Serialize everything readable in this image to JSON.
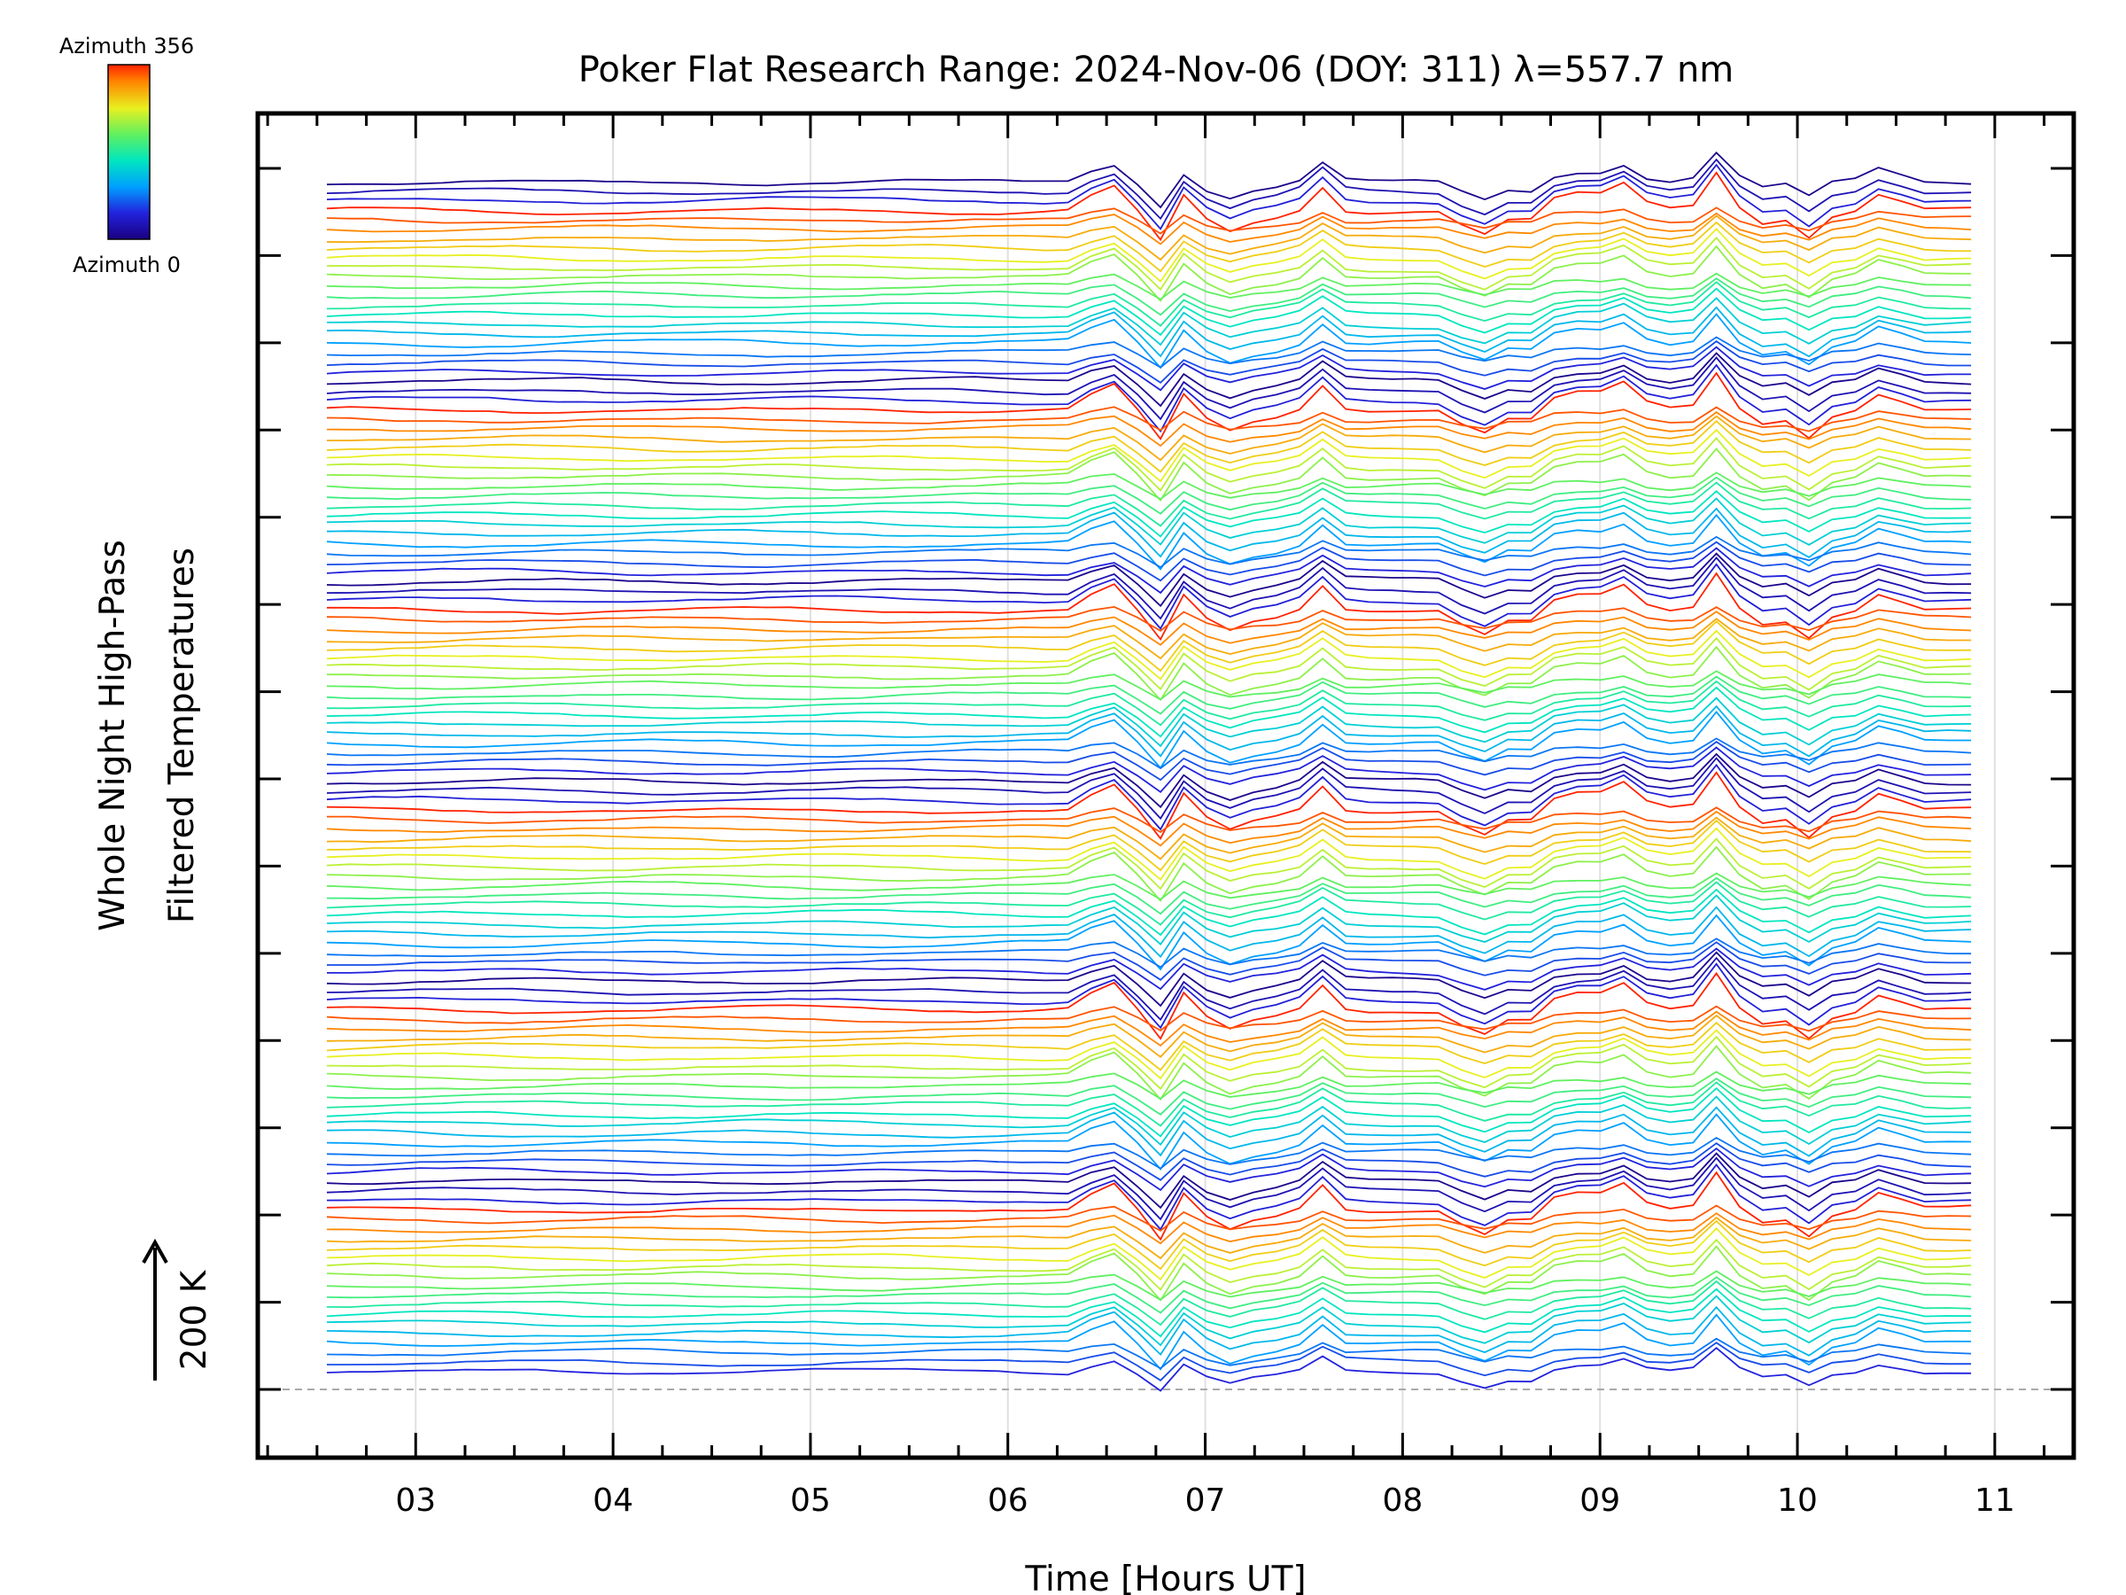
{
  "chart_data": {
    "type": "line",
    "title": "Poker Flat Research Range: 2024-Nov-06 (DOY: 311) λ=557.7 nm",
    "xlabel": "Time [Hours UT]",
    "ylabel_line1": "Whole Night High-Pass",
    "ylabel_line2": "Filtered Temperatures",
    "xlim": [
      2.2,
      11.4
    ],
    "x_ticks": [
      3,
      4,
      5,
      6,
      7,
      8,
      9,
      10,
      11
    ],
    "x_tick_labels": [
      "03",
      "04",
      "05",
      "06",
      "07",
      "08",
      "09",
      "10",
      "11"
    ],
    "x_start": 2.55,
    "x_end": 10.88,
    "n_times": 72,
    "y_tick_count": 15,
    "scale_bar_label": "200 K",
    "colorbar": {
      "top_label": "Azimuth 356",
      "bottom_label": "Azimuth 0",
      "azimuth_range": [
        0,
        356
      ],
      "colormap": "rainbow"
    },
    "groups": 6,
    "lines_per_group": 21,
    "baseline_dashed": true,
    "grid": "vertical",
    "event_features_hours": [
      6.5,
      6.78,
      6.9,
      7.3,
      7.6,
      8.38,
      8.6,
      9.1,
      9.6,
      10.05,
      10.45
    ]
  }
}
